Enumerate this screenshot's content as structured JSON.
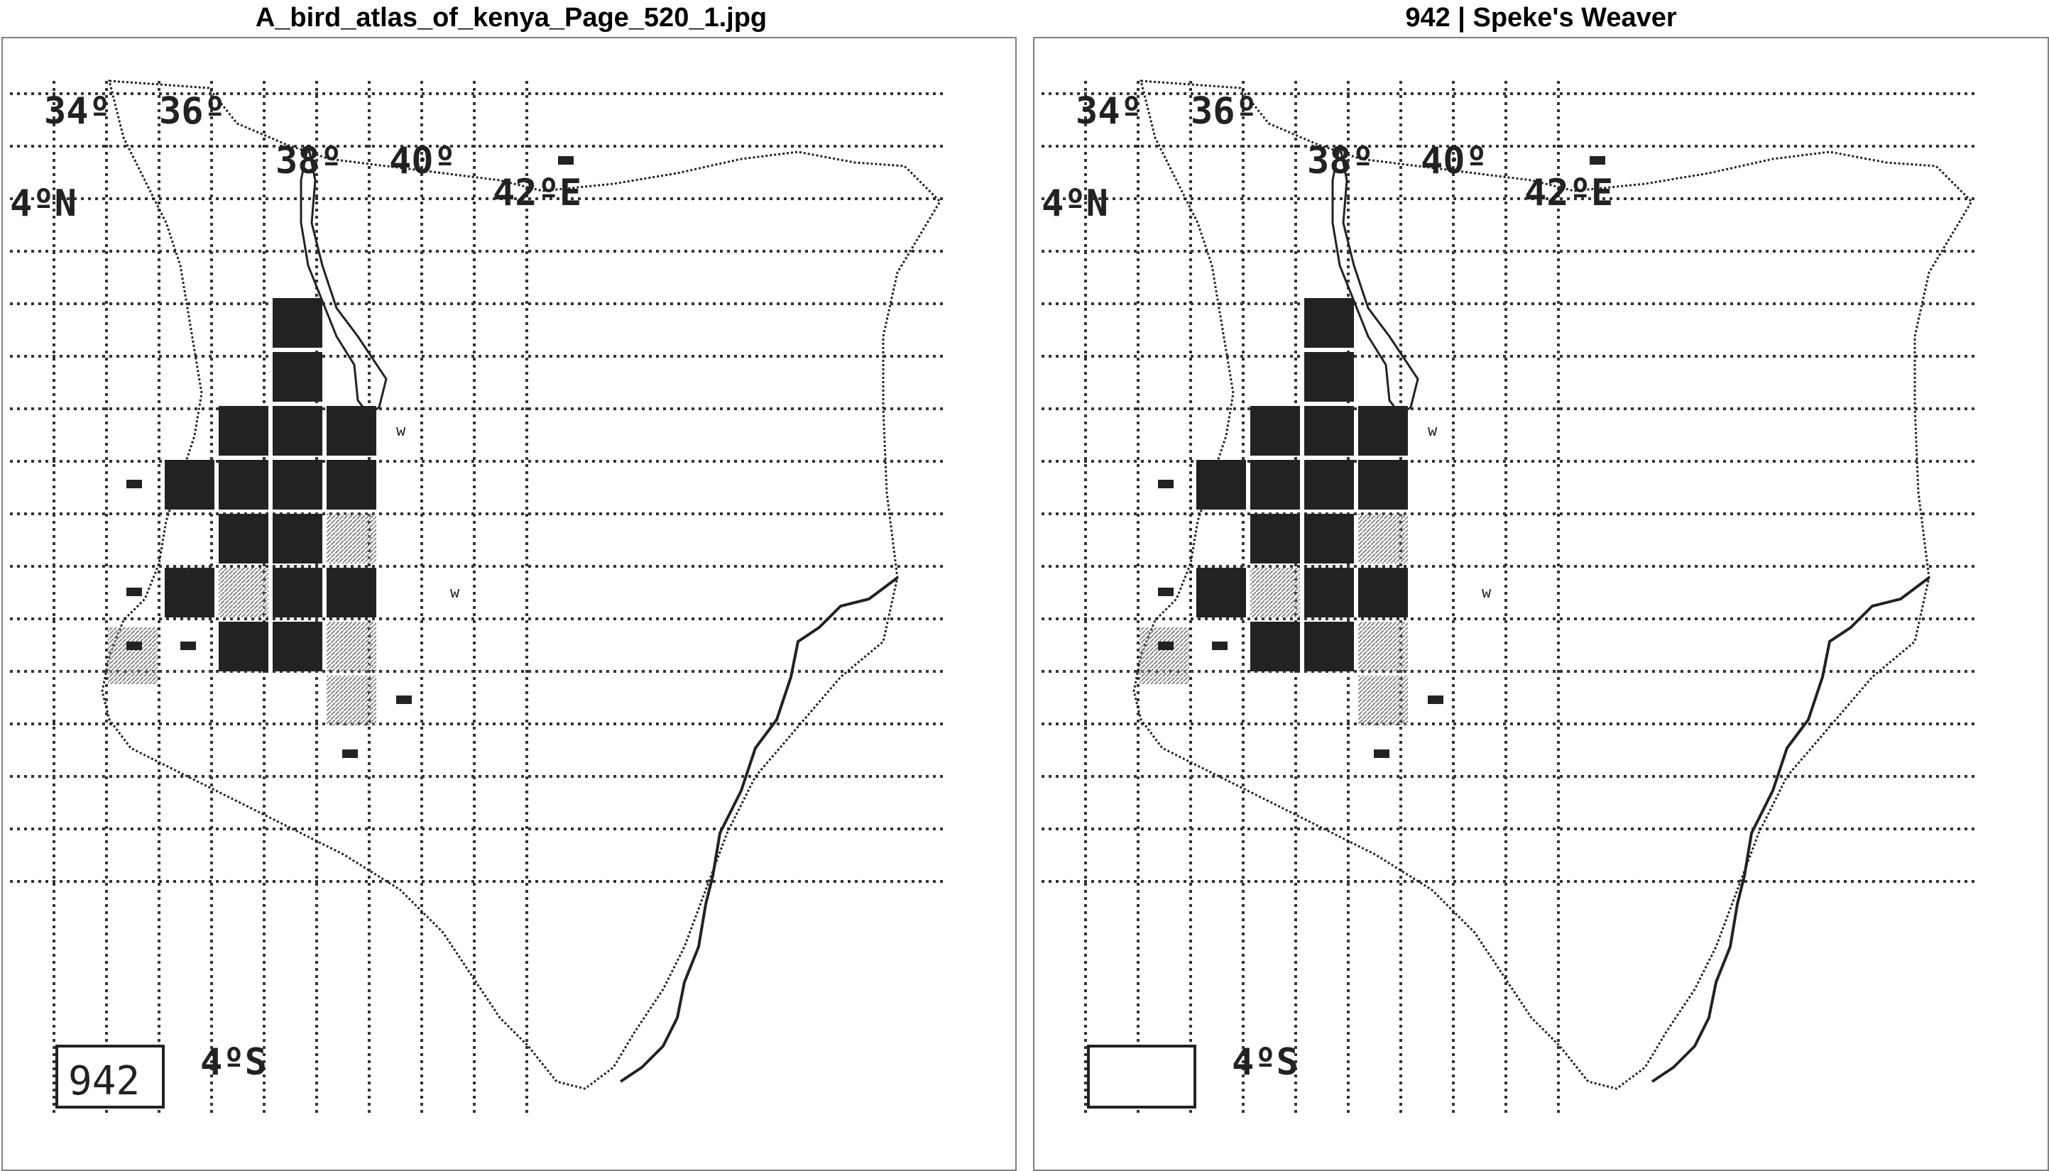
{
  "panels": [
    {
      "id": "left",
      "title": "A_bird_atlas_of_kenya_Page_520_1.jpg",
      "species_number": "942"
    },
    {
      "id": "right",
      "title": "942 | Speke's Weaver",
      "species_number": ""
    }
  ],
  "map": {
    "longitude_labels": [
      "34º",
      "36º",
      "38º",
      "40º",
      "42ºE"
    ],
    "latitude_labels": [
      "4ºN",
      "4ºS"
    ],
    "grid": {
      "cols": 8,
      "rows": 10,
      "lon_start": 34,
      "lat_start": 5,
      "cell_deg": 1
    },
    "breeding_squares": [
      [
        5,
        3
      ],
      [
        5,
        4
      ],
      [
        4,
        5
      ],
      [
        5,
        5
      ],
      [
        6,
        5
      ],
      [
        3,
        6
      ],
      [
        4,
        6
      ],
      [
        5,
        6
      ],
      [
        6,
        6
      ],
      [
        4,
        7
      ],
      [
        5,
        7
      ],
      [
        3,
        8
      ],
      [
        5,
        8
      ],
      [
        6,
        8
      ],
      [
        4,
        9
      ],
      [
        5,
        9
      ]
    ],
    "shaded_squares": [
      [
        4,
        8
      ],
      [
        6,
        7
      ],
      [
        6,
        9
      ],
      [
        6,
        10
      ]
    ],
    "small_records": [
      [
        3,
        6
      ],
      [
        2,
        6
      ],
      [
        2,
        8
      ],
      [
        2,
        9
      ],
      [
        3,
        9
      ],
      [
        7,
        10
      ],
      [
        6,
        11
      ],
      [
        10,
        0
      ]
    ],
    "w_records": [
      [
        7,
        5
      ],
      [
        8,
        8
      ]
    ],
    "colors": {
      "ink": "#222222",
      "grid": "#333333",
      "shade": "#888888"
    }
  }
}
